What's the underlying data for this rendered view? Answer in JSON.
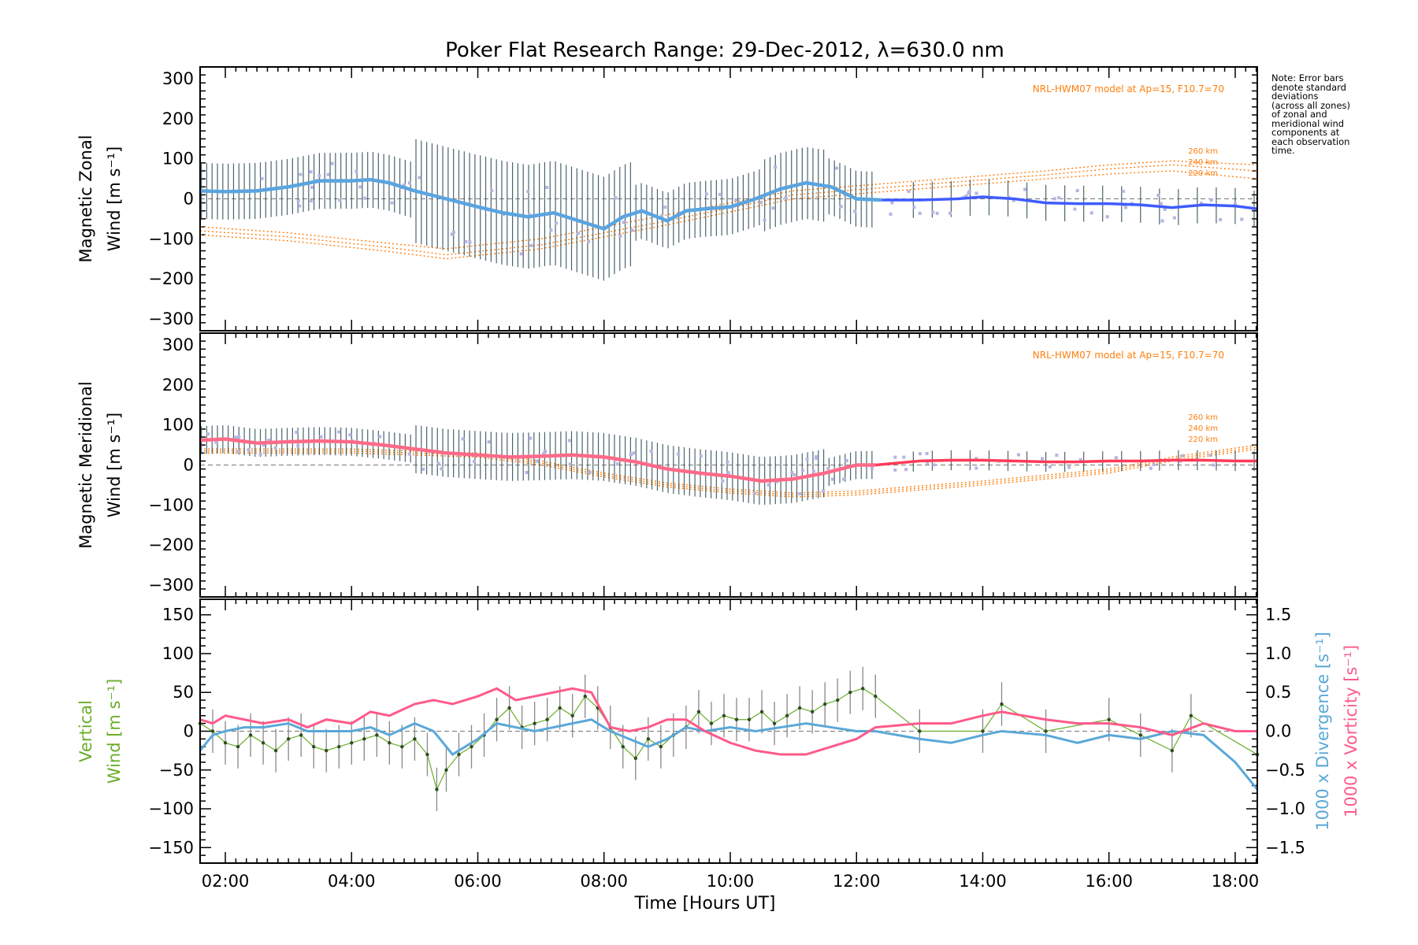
{
  "title": "Poker Flat Research Range: 29-Dec-2012, λ=630.0 nm",
  "note": "Note: Error bars\ndenote standard\ndeviations\n(across all zones)\nof zonal and\nmeridional wind\ncomponents at\neach observation\ntime.",
  "colors": {
    "zonal": "#3f5bff",
    "zonal_dense": "#5aa4e0",
    "meridional": "#ff3a58",
    "meridional_dense": "#ff6a88",
    "model": "#ff7f0e",
    "vertical": "#6aad2a",
    "divergence": "#5aa8d8",
    "vorticity": "#ff5a8a",
    "scatter": "#b7b3e3"
  },
  "chart_data": [
    {
      "type": "line",
      "panel": "zonal",
      "ylabel": [
        "Magnetic Zonal",
        "Wind [m s⁻¹]"
      ],
      "ylim": [
        -330,
        330
      ],
      "yticks": [
        300,
        200,
        100,
        0,
        -100,
        -200,
        -300
      ],
      "xlim": [
        1.6,
        18.35
      ],
      "model_label": "NRL-HWM07 model at Ap=15, F10.7=70",
      "model_alt_labels": [
        "260 km",
        "240 km",
        "220 km"
      ],
      "series": [
        {
          "x": [
            1.6,
            2.0,
            2.5,
            3.0,
            3.5,
            4.0,
            4.3,
            4.6,
            5.0,
            5.5,
            6.0,
            6.4,
            6.8,
            7.2,
            7.6,
            8.0,
            8.3,
            8.6,
            9.0,
            9.3,
            9.6,
            10.0,
            10.4,
            10.8,
            11.2,
            11.6,
            12.0,
            12.4,
            13.0,
            13.6,
            14.0,
            14.5,
            15.0,
            15.5,
            16.0,
            16.5,
            17.0,
            17.5,
            18.0,
            18.35
          ],
          "y": [
            20,
            18,
            20,
            30,
            45,
            45,
            48,
            40,
            20,
            0,
            -20,
            -35,
            -45,
            -35,
            -55,
            -75,
            -45,
            -30,
            -55,
            -30,
            -25,
            -20,
            0,
            25,
            40,
            30,
            0,
            -3,
            -3,
            0,
            5,
            0,
            -10,
            -12,
            -12,
            -15,
            -22,
            -15,
            -18,
            -25
          ]
        }
      ],
      "models": [
        {
          "name": "260 km",
          "x": [
            1.6,
            3,
            4.5,
            5.5,
            7,
            9,
            11,
            13,
            15,
            16,
            17,
            18.35
          ],
          "y": [
            -70,
            -85,
            -110,
            -125,
            -100,
            -40,
            20,
            45,
            70,
            85,
            95,
            85
          ]
        },
        {
          "name": "240 km",
          "x": [
            1.6,
            3,
            4.5,
            5.5,
            7,
            9,
            11,
            13,
            15,
            16,
            17,
            18.35
          ],
          "y": [
            -80,
            -95,
            -120,
            -140,
            -115,
            -55,
            10,
            35,
            60,
            75,
            85,
            70
          ]
        },
        {
          "name": "220 km",
          "x": [
            1.6,
            3,
            4.5,
            5.5,
            7,
            9,
            11,
            13,
            15,
            16,
            17,
            18.35
          ],
          "y": [
            -90,
            -105,
            -130,
            -150,
            -125,
            -65,
            0,
            25,
            50,
            62,
            70,
            50
          ]
        }
      ]
    },
    {
      "type": "line",
      "panel": "meridional",
      "ylabel": [
        "Magnetic Meridional",
        "Wind [m s⁻¹]"
      ],
      "ylim": [
        -330,
        330
      ],
      "yticks": [
        300,
        200,
        100,
        0,
        -100,
        -200,
        -300
      ],
      "xlim": [
        1.6,
        18.35
      ],
      "model_label": "NRL-HWM07 model at Ap=15, F10.7=70",
      "model_alt_labels": [
        "260 km",
        "240 km",
        "220 km"
      ],
      "series": [
        {
          "x": [
            1.6,
            2.0,
            2.5,
            3.0,
            3.5,
            4.0,
            4.5,
            5.0,
            5.5,
            6.0,
            6.5,
            7.0,
            7.5,
            8.0,
            8.5,
            9.0,
            9.5,
            10.0,
            10.5,
            11.0,
            11.5,
            12.0,
            12.3,
            13.0,
            13.5,
            14.0,
            14.5,
            15.0,
            15.5,
            16.0,
            16.5,
            17.0,
            17.5,
            18.0,
            18.35
          ],
          "y": [
            62,
            65,
            55,
            58,
            60,
            58,
            50,
            40,
            30,
            25,
            20,
            22,
            25,
            20,
            8,
            -10,
            -20,
            -28,
            -40,
            -35,
            -20,
            0,
            0,
            10,
            12,
            12,
            10,
            8,
            8,
            10,
            10,
            12,
            12,
            10,
            10
          ]
        }
      ],
      "models": [
        {
          "name": "260 km",
          "x": [
            1.6,
            4,
            6,
            7,
            8,
            9,
            10,
            11,
            12,
            14,
            16,
            17,
            18.35
          ],
          "y": [
            40,
            40,
            30,
            10,
            -20,
            -45,
            -60,
            -70,
            -65,
            -40,
            -10,
            20,
            50
          ]
        },
        {
          "name": "240 km",
          "x": [
            1.6,
            4,
            6,
            7,
            8,
            9,
            10,
            11,
            12,
            14,
            16,
            17,
            18.35
          ],
          "y": [
            35,
            35,
            25,
            5,
            -25,
            -50,
            -65,
            -75,
            -70,
            -45,
            -15,
            15,
            45
          ]
        },
        {
          "name": "220 km",
          "x": [
            1.6,
            4,
            6,
            7,
            8,
            9,
            10,
            11,
            12,
            14,
            16,
            17,
            18.35
          ],
          "y": [
            30,
            30,
            20,
            0,
            -30,
            -55,
            -70,
            -80,
            -75,
            -50,
            -20,
            10,
            40
          ]
        }
      ]
    },
    {
      "type": "line",
      "panel": "vertical",
      "ylabel": [
        "Vertical",
        "Wind [m s⁻¹]"
      ],
      "ylim": [
        -170,
        170
      ],
      "yticks": [
        150,
        100,
        50,
        0,
        -50,
        -100,
        -150
      ],
      "right_ylim": [
        -1.7,
        1.7
      ],
      "right_yticks": [
        1.5,
        1.0,
        0.5,
        0.0,
        -0.5,
        -1.0,
        -1.5
      ],
      "right_ylabels": [
        "1000 x Divergence [s⁻¹]",
        "1000 x Vorticity [s⁻¹]"
      ],
      "xlim": [
        1.6,
        18.35
      ],
      "xticks": [
        2,
        4,
        6,
        8,
        10,
        12,
        14,
        16,
        18
      ],
      "xtick_labels": [
        "02:00",
        "04:00",
        "06:00",
        "08:00",
        "10:00",
        "12:00",
        "14:00",
        "16:00",
        "18:00"
      ],
      "xlabel": "Time [Hours UT]",
      "series": [
        {
          "name": "vertical",
          "x": [
            1.6,
            1.8,
            2.0,
            2.2,
            2.4,
            2.6,
            2.8,
            3.0,
            3.2,
            3.4,
            3.6,
            3.8,
            4.0,
            4.2,
            4.4,
            4.6,
            4.8,
            5.0,
            5.2,
            5.35,
            5.5,
            5.7,
            5.9,
            6.1,
            6.3,
            6.5,
            6.7,
            6.9,
            7.1,
            7.3,
            7.5,
            7.7,
            7.9,
            8.1,
            8.3,
            8.5,
            8.7,
            8.9,
            9.1,
            9.3,
            9.5,
            9.7,
            9.9,
            10.1,
            10.3,
            10.5,
            10.7,
            10.9,
            11.1,
            11.3,
            11.5,
            11.7,
            11.9,
            12.1,
            12.3,
            13.0,
            14.0,
            14.3,
            15.0,
            16.0,
            16.5,
            17.0,
            17.3,
            18.35
          ],
          "y": [
            10,
            0,
            -15,
            -20,
            -5,
            -15,
            -25,
            -10,
            -5,
            -20,
            -25,
            -20,
            -15,
            -10,
            -5,
            -15,
            -20,
            -10,
            -30,
            -75,
            -50,
            -30,
            -20,
            -5,
            15,
            30,
            5,
            10,
            15,
            30,
            20,
            45,
            30,
            5,
            -20,
            -35,
            -10,
            -20,
            -5,
            5,
            25,
            10,
            20,
            15,
            15,
            25,
            10,
            20,
            30,
            25,
            35,
            40,
            50,
            55,
            45,
            0,
            0,
            35,
            0,
            15,
            -5,
            -25,
            20,
            -30
          ]
        },
        {
          "name": "divergence",
          "x": [
            1.6,
            1.8,
            2.0,
            2.3,
            2.6,
            3.0,
            3.3,
            3.6,
            4.0,
            4.3,
            4.6,
            5.0,
            5.3,
            5.6,
            6.0,
            6.3,
            6.6,
            6.9,
            7.2,
            7.5,
            7.8,
            8.1,
            8.4,
            8.7,
            9.0,
            9.3,
            9.6,
            10.0,
            10.4,
            10.8,
            11.2,
            11.6,
            12.0,
            12.3,
            13.0,
            13.5,
            14.0,
            14.3,
            15.0,
            15.5,
            16.0,
            16.5,
            17.0,
            17.5,
            18.0,
            18.35
          ],
          "y": [
            -0.25,
            -0.05,
            0.0,
            0.05,
            0.05,
            0.1,
            0.0,
            0.0,
            0.0,
            0.05,
            -0.05,
            0.1,
            0.0,
            -0.3,
            -0.1,
            0.1,
            0.05,
            0.0,
            0.05,
            0.1,
            0.15,
            0.0,
            -0.1,
            -0.2,
            -0.1,
            0.05,
            0.0,
            0.05,
            0.0,
            0.05,
            0.1,
            0.05,
            0.0,
            0.0,
            -0.1,
            -0.15,
            -0.05,
            0.0,
            -0.05,
            -0.15,
            -0.05,
            -0.1,
            0.0,
            -0.05,
            -0.4,
            -0.75
          ]
        },
        {
          "name": "vorticity",
          "x": [
            1.6,
            1.8,
            2.0,
            2.3,
            2.6,
            3.0,
            3.3,
            3.6,
            4.0,
            4.3,
            4.6,
            5.0,
            5.3,
            5.6,
            6.0,
            6.3,
            6.6,
            6.9,
            7.2,
            7.5,
            7.8,
            8.1,
            8.4,
            8.7,
            9.0,
            9.3,
            9.6,
            10.0,
            10.4,
            10.8,
            11.2,
            11.6,
            12.0,
            12.3,
            13.0,
            13.5,
            14.0,
            14.3,
            15.0,
            15.5,
            16.0,
            16.5,
            17.0,
            17.5,
            18.0,
            18.35
          ],
          "y": [
            0.15,
            0.1,
            0.2,
            0.15,
            0.1,
            0.15,
            0.05,
            0.15,
            0.1,
            0.25,
            0.2,
            0.35,
            0.4,
            0.35,
            0.45,
            0.55,
            0.4,
            0.45,
            0.5,
            0.55,
            0.5,
            0.05,
            0.0,
            0.05,
            0.15,
            0.15,
            0.0,
            -0.15,
            -0.25,
            -0.3,
            -0.3,
            -0.2,
            -0.1,
            0.05,
            0.1,
            0.1,
            0.2,
            0.25,
            0.15,
            0.1,
            0.1,
            0.05,
            -0.05,
            0.1,
            0.0,
            0.0
          ]
        }
      ]
    }
  ]
}
